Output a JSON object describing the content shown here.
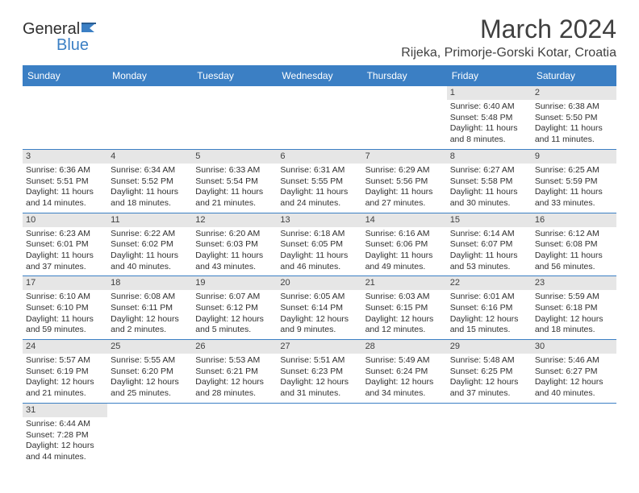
{
  "logo": {
    "text1": "General",
    "text2": "Blue"
  },
  "title": "March 2024",
  "location": "Rijeka, Primorje-Gorski Kotar, Croatia",
  "colors": {
    "header_bg": "#3b7fc4",
    "header_fg": "#ffffff",
    "daynum_bg": "#e6e6e6",
    "border": "#3b7fc4",
    "text": "#303030",
    "title_text": "#404040",
    "background": "#ffffff"
  },
  "typography": {
    "title_fontsize": 32,
    "location_fontsize": 16,
    "dayhead_fontsize": 12,
    "cell_fontsize": 10.5
  },
  "columns": [
    "Sunday",
    "Monday",
    "Tuesday",
    "Wednesday",
    "Thursday",
    "Friday",
    "Saturday"
  ],
  "weeks": [
    [
      null,
      null,
      null,
      null,
      null,
      {
        "n": "1",
        "sunrise": "6:40 AM",
        "sunset": "5:48 PM",
        "daylight": "11 hours and 8 minutes."
      },
      {
        "n": "2",
        "sunrise": "6:38 AM",
        "sunset": "5:50 PM",
        "daylight": "11 hours and 11 minutes."
      }
    ],
    [
      {
        "n": "3",
        "sunrise": "6:36 AM",
        "sunset": "5:51 PM",
        "daylight": "11 hours and 14 minutes."
      },
      {
        "n": "4",
        "sunrise": "6:34 AM",
        "sunset": "5:52 PM",
        "daylight": "11 hours and 18 minutes."
      },
      {
        "n": "5",
        "sunrise": "6:33 AM",
        "sunset": "5:54 PM",
        "daylight": "11 hours and 21 minutes."
      },
      {
        "n": "6",
        "sunrise": "6:31 AM",
        "sunset": "5:55 PM",
        "daylight": "11 hours and 24 minutes."
      },
      {
        "n": "7",
        "sunrise": "6:29 AM",
        "sunset": "5:56 PM",
        "daylight": "11 hours and 27 minutes."
      },
      {
        "n": "8",
        "sunrise": "6:27 AM",
        "sunset": "5:58 PM",
        "daylight": "11 hours and 30 minutes."
      },
      {
        "n": "9",
        "sunrise": "6:25 AM",
        "sunset": "5:59 PM",
        "daylight": "11 hours and 33 minutes."
      }
    ],
    [
      {
        "n": "10",
        "sunrise": "6:23 AM",
        "sunset": "6:01 PM",
        "daylight": "11 hours and 37 minutes."
      },
      {
        "n": "11",
        "sunrise": "6:22 AM",
        "sunset": "6:02 PM",
        "daylight": "11 hours and 40 minutes."
      },
      {
        "n": "12",
        "sunrise": "6:20 AM",
        "sunset": "6:03 PM",
        "daylight": "11 hours and 43 minutes."
      },
      {
        "n": "13",
        "sunrise": "6:18 AM",
        "sunset": "6:05 PM",
        "daylight": "11 hours and 46 minutes."
      },
      {
        "n": "14",
        "sunrise": "6:16 AM",
        "sunset": "6:06 PM",
        "daylight": "11 hours and 49 minutes."
      },
      {
        "n": "15",
        "sunrise": "6:14 AM",
        "sunset": "6:07 PM",
        "daylight": "11 hours and 53 minutes."
      },
      {
        "n": "16",
        "sunrise": "6:12 AM",
        "sunset": "6:08 PM",
        "daylight": "11 hours and 56 minutes."
      }
    ],
    [
      {
        "n": "17",
        "sunrise": "6:10 AM",
        "sunset": "6:10 PM",
        "daylight": "11 hours and 59 minutes."
      },
      {
        "n": "18",
        "sunrise": "6:08 AM",
        "sunset": "6:11 PM",
        "daylight": "12 hours and 2 minutes."
      },
      {
        "n": "19",
        "sunrise": "6:07 AM",
        "sunset": "6:12 PM",
        "daylight": "12 hours and 5 minutes."
      },
      {
        "n": "20",
        "sunrise": "6:05 AM",
        "sunset": "6:14 PM",
        "daylight": "12 hours and 9 minutes."
      },
      {
        "n": "21",
        "sunrise": "6:03 AM",
        "sunset": "6:15 PM",
        "daylight": "12 hours and 12 minutes."
      },
      {
        "n": "22",
        "sunrise": "6:01 AM",
        "sunset": "6:16 PM",
        "daylight": "12 hours and 15 minutes."
      },
      {
        "n": "23",
        "sunrise": "5:59 AM",
        "sunset": "6:18 PM",
        "daylight": "12 hours and 18 minutes."
      }
    ],
    [
      {
        "n": "24",
        "sunrise": "5:57 AM",
        "sunset": "6:19 PM",
        "daylight": "12 hours and 21 minutes."
      },
      {
        "n": "25",
        "sunrise": "5:55 AM",
        "sunset": "6:20 PM",
        "daylight": "12 hours and 25 minutes."
      },
      {
        "n": "26",
        "sunrise": "5:53 AM",
        "sunset": "6:21 PM",
        "daylight": "12 hours and 28 minutes."
      },
      {
        "n": "27",
        "sunrise": "5:51 AM",
        "sunset": "6:23 PM",
        "daylight": "12 hours and 31 minutes."
      },
      {
        "n": "28",
        "sunrise": "5:49 AM",
        "sunset": "6:24 PM",
        "daylight": "12 hours and 34 minutes."
      },
      {
        "n": "29",
        "sunrise": "5:48 AM",
        "sunset": "6:25 PM",
        "daylight": "12 hours and 37 minutes."
      },
      {
        "n": "30",
        "sunrise": "5:46 AM",
        "sunset": "6:27 PM",
        "daylight": "12 hours and 40 minutes."
      }
    ],
    [
      {
        "n": "31",
        "sunrise": "6:44 AM",
        "sunset": "7:28 PM",
        "daylight": "12 hours and 44 minutes."
      },
      null,
      null,
      null,
      null,
      null,
      null
    ]
  ],
  "labels": {
    "sunrise": "Sunrise:",
    "sunset": "Sunset:",
    "daylight": "Daylight:"
  }
}
